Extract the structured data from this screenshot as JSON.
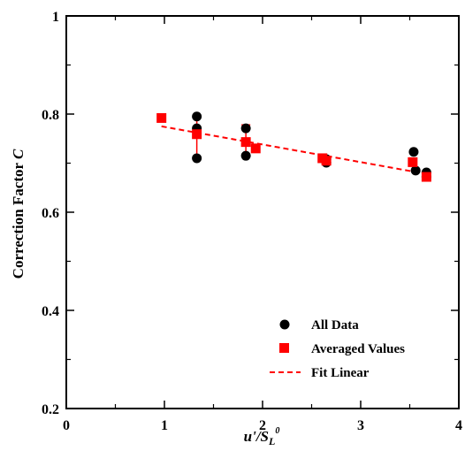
{
  "colors": {
    "all_data": "#000000",
    "averaged": "#ff0000",
    "fit": "#ff0000"
  },
  "chart_data": {
    "type": "scatter",
    "xlabel": "u'/S",
    "xlabel_sub": "L",
    "xlabel_sup": "0",
    "ylabel": "Correction Factor ",
    "ylabel_var": "C",
    "xlim": [
      0,
      4
    ],
    "ylim": [
      0.2,
      1.0
    ],
    "xticks": [
      "0",
      "1",
      "2",
      "3",
      "4"
    ],
    "yticks": [
      "0.2",
      "0.4",
      "0.6",
      "0.8",
      "1"
    ],
    "legend_placement": "bottom-right",
    "series": [
      {
        "name": "All Data",
        "marker": "circle",
        "points": [
          {
            "x": 1.33,
            "y": 0.795
          },
          {
            "x": 1.33,
            "y": 0.771
          },
          {
            "x": 1.33,
            "y": 0.71
          },
          {
            "x": 1.83,
            "y": 0.771
          },
          {
            "x": 1.83,
            "y": 0.715
          },
          {
            "x": 2.65,
            "y": 0.708
          },
          {
            "x": 2.65,
            "y": 0.701
          },
          {
            "x": 3.54,
            "y": 0.723
          },
          {
            "x": 3.56,
            "y": 0.685
          },
          {
            "x": 3.67,
            "y": 0.681
          },
          {
            "x": 3.67,
            "y": 0.672
          }
        ]
      },
      {
        "name": "Averaged Values",
        "marker": "square",
        "points": [
          {
            "x": 0.97,
            "y": 0.792
          },
          {
            "x": 1.33,
            "y": 0.759
          },
          {
            "x": 1.83,
            "y": 0.743
          },
          {
            "x": 1.93,
            "y": 0.73
          },
          {
            "x": 2.61,
            "y": 0.71
          },
          {
            "x": 2.65,
            "y": 0.705
          },
          {
            "x": 3.53,
            "y": 0.702
          },
          {
            "x": 3.67,
            "y": 0.672
          }
        ],
        "error_bars": [
          {
            "x": 1.33,
            "low": 0.71,
            "high": 0.795
          },
          {
            "x": 1.83,
            "low": 0.715,
            "high": 0.778
          }
        ]
      },
      {
        "name": "Fit Linear",
        "style": "dashed",
        "line": {
          "x": [
            0.97,
            3.67
          ],
          "y": [
            0.775,
            0.678
          ]
        }
      }
    ]
  }
}
